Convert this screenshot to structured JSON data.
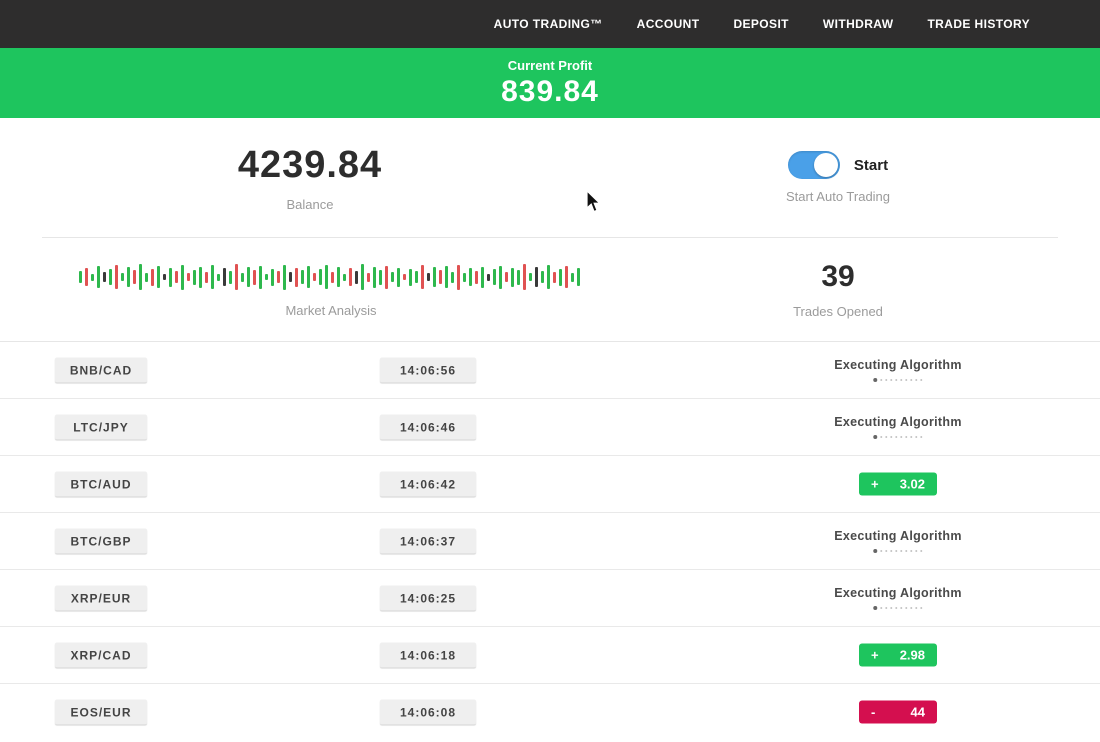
{
  "colors": {
    "profit_green": "#1ec55e",
    "loss_red": "#d40f4f",
    "toggle_blue": "#4aa0e8",
    "navbar_dark": "#2e2d2d"
  },
  "navbar": {
    "items": [
      {
        "label": "AUTO TRADING™"
      },
      {
        "label": "ACCOUNT"
      },
      {
        "label": "DEPOSIT"
      },
      {
        "label": "WITHDRAW"
      },
      {
        "label": "TRADE HISTORY"
      }
    ]
  },
  "profit_banner": {
    "label": "Current Profit",
    "value": "839.84"
  },
  "account": {
    "balance": "4239.84",
    "balance_label": "Balance",
    "toggle_label": "Start",
    "toggle_state": "on",
    "toggle_caption": "Start Auto Trading"
  },
  "market": {
    "label": "Market Analysis",
    "trades_opened": "39",
    "trades_label": "Trades Opened",
    "bars": [
      [
        12,
        "g"
      ],
      [
        18,
        "r"
      ],
      [
        7,
        "g"
      ],
      [
        22,
        "g"
      ],
      [
        10,
        "k"
      ],
      [
        16,
        "g"
      ],
      [
        24,
        "r"
      ],
      [
        8,
        "g"
      ],
      [
        20,
        "g"
      ],
      [
        14,
        "r"
      ],
      [
        26,
        "g"
      ],
      [
        9,
        "g"
      ],
      [
        17,
        "r"
      ],
      [
        22,
        "g"
      ],
      [
        6,
        "k"
      ],
      [
        19,
        "g"
      ],
      [
        12,
        "r"
      ],
      [
        25,
        "g"
      ],
      [
        8,
        "r"
      ],
      [
        15,
        "g"
      ],
      [
        21,
        "g"
      ],
      [
        11,
        "r"
      ],
      [
        24,
        "g"
      ],
      [
        7,
        "g"
      ],
      [
        18,
        "k"
      ],
      [
        13,
        "g"
      ],
      [
        26,
        "r"
      ],
      [
        9,
        "g"
      ],
      [
        20,
        "g"
      ],
      [
        15,
        "r"
      ],
      [
        23,
        "g"
      ],
      [
        6,
        "g"
      ],
      [
        17,
        "g"
      ],
      [
        12,
        "r"
      ],
      [
        25,
        "g"
      ],
      [
        10,
        "k"
      ],
      [
        19,
        "r"
      ],
      [
        14,
        "g"
      ],
      [
        22,
        "g"
      ],
      [
        8,
        "r"
      ],
      [
        16,
        "g"
      ],
      [
        24,
        "g"
      ],
      [
        11,
        "r"
      ],
      [
        20,
        "g"
      ],
      [
        7,
        "g"
      ],
      [
        18,
        "r"
      ],
      [
        13,
        "k"
      ],
      [
        26,
        "g"
      ],
      [
        9,
        "r"
      ],
      [
        21,
        "g"
      ],
      [
        15,
        "g"
      ],
      [
        23,
        "r"
      ],
      [
        10,
        "g"
      ],
      [
        19,
        "g"
      ],
      [
        6,
        "r"
      ],
      [
        17,
        "g"
      ],
      [
        12,
        "g"
      ],
      [
        24,
        "r"
      ],
      [
        8,
        "k"
      ],
      [
        20,
        "g"
      ],
      [
        14,
        "r"
      ],
      [
        22,
        "g"
      ],
      [
        11,
        "g"
      ],
      [
        25,
        "r"
      ],
      [
        9,
        "g"
      ],
      [
        18,
        "g"
      ],
      [
        13,
        "r"
      ],
      [
        21,
        "g"
      ],
      [
        7,
        "k"
      ],
      [
        16,
        "g"
      ],
      [
        23,
        "g"
      ],
      [
        10,
        "r"
      ],
      [
        19,
        "g"
      ],
      [
        15,
        "g"
      ],
      [
        26,
        "r"
      ],
      [
        8,
        "g"
      ],
      [
        20,
        "k"
      ],
      [
        12,
        "g"
      ],
      [
        24,
        "g"
      ],
      [
        11,
        "r"
      ],
      [
        17,
        "g"
      ],
      [
        22,
        "r"
      ],
      [
        9,
        "g"
      ],
      [
        18,
        "g"
      ]
    ]
  },
  "trade_list": {
    "executing_label": "Executing Algorithm",
    "trades": [
      {
        "pair": "BNB/CAD",
        "time": "14:06:56",
        "state": "executing"
      },
      {
        "pair": "LTC/JPY",
        "time": "14:06:46",
        "state": "executing"
      },
      {
        "pair": "BTC/AUD",
        "time": "14:06:42",
        "state": "result",
        "result_type": "profit",
        "sign": "+",
        "amount": "3.02"
      },
      {
        "pair": "BTC/GBP",
        "time": "14:06:37",
        "state": "executing"
      },
      {
        "pair": "XRP/EUR",
        "time": "14:06:25",
        "state": "executing"
      },
      {
        "pair": "XRP/CAD",
        "time": "14:06:18",
        "state": "result",
        "result_type": "profit",
        "sign": "+",
        "amount": "2.98"
      },
      {
        "pair": "EOS/EUR",
        "time": "14:06:08",
        "state": "result",
        "result_type": "loss",
        "sign": "-",
        "amount": "44"
      }
    ]
  }
}
